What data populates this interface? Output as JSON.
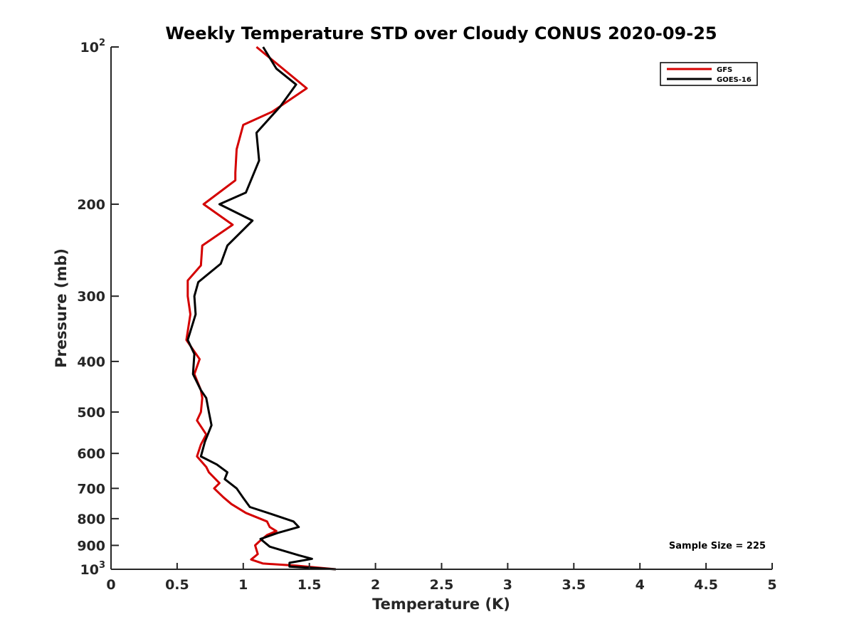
{
  "chart_data": {
    "type": "line",
    "title": "Weekly Temperature STD over Cloudy CONUS 2020-09-25",
    "xlabel": "Temperature (K)",
    "ylabel": "Pressure (mb)",
    "xlim": [
      0,
      5
    ],
    "ylim": [
      100,
      1000
    ],
    "y_scale": "log",
    "y_reversed": true,
    "grid": false,
    "legend_position": "top-right",
    "xticks": [
      0,
      0.5,
      1,
      1.5,
      2,
      2.5,
      3,
      3.5,
      4,
      4.5,
      5
    ],
    "xtick_labels": [
      "0",
      "0.5",
      "1",
      "1.5",
      "2",
      "2.5",
      "3",
      "3.5",
      "4",
      "4.5",
      "5"
    ],
    "yticks": [
      {
        "value": 100,
        "base": "10",
        "exp": "2",
        "label": ""
      },
      {
        "value": 200,
        "label": "200"
      },
      {
        "value": 300,
        "label": "300"
      },
      {
        "value": 400,
        "label": "400"
      },
      {
        "value": 500,
        "label": "500"
      },
      {
        "value": 600,
        "label": "600"
      },
      {
        "value": 700,
        "label": "700"
      },
      {
        "value": 800,
        "label": "800"
      },
      {
        "value": 900,
        "label": "900"
      },
      {
        "value": 1000,
        "base": "10",
        "exp": "3",
        "label": ""
      }
    ],
    "annotation": "Sample Size = 225",
    "series": [
      {
        "name": "GFS",
        "color": "#d40000",
        "points": [
          [
            1.1,
            100
          ],
          [
            1.48,
            120
          ],
          [
            1.22,
            133
          ],
          [
            1.0,
            141
          ],
          [
            0.95,
            157
          ],
          [
            0.94,
            174
          ],
          [
            0.94,
            180
          ],
          [
            0.7,
            200
          ],
          [
            0.92,
            219
          ],
          [
            0.69,
            240
          ],
          [
            0.68,
            262
          ],
          [
            0.58,
            280
          ],
          [
            0.58,
            300
          ],
          [
            0.6,
            325
          ],
          [
            0.57,
            364
          ],
          [
            0.67,
            396
          ],
          [
            0.63,
            423
          ],
          [
            0.68,
            454
          ],
          [
            0.69,
            470
          ],
          [
            0.68,
            500
          ],
          [
            0.65,
            519
          ],
          [
            0.72,
            552
          ],
          [
            0.68,
            577
          ],
          [
            0.65,
            608
          ],
          [
            0.72,
            637
          ],
          [
            0.74,
            652
          ],
          [
            0.82,
            684
          ],
          [
            0.78,
            700
          ],
          [
            0.85,
            728
          ],
          [
            0.91,
            750
          ],
          [
            1.02,
            780
          ],
          [
            1.18,
            810
          ],
          [
            1.2,
            830
          ],
          [
            1.25,
            845
          ],
          [
            1.18,
            860
          ],
          [
            1.12,
            885
          ],
          [
            1.09,
            900
          ],
          [
            1.11,
            935
          ],
          [
            1.06,
            958
          ],
          [
            1.15,
            975
          ],
          [
            1.4,
            984
          ],
          [
            1.7,
            1000
          ]
        ]
      },
      {
        "name": "GOES-16",
        "color": "#000000",
        "points": [
          [
            1.15,
            100
          ],
          [
            1.25,
            110
          ],
          [
            1.4,
            118
          ],
          [
            1.28,
            130
          ],
          [
            1.1,
            146
          ],
          [
            1.12,
            165
          ],
          [
            1.02,
            190
          ],
          [
            0.82,
            200
          ],
          [
            1.07,
            215
          ],
          [
            0.88,
            240
          ],
          [
            0.83,
            260
          ],
          [
            0.66,
            282
          ],
          [
            0.63,
            300
          ],
          [
            0.64,
            325
          ],
          [
            0.58,
            364
          ],
          [
            0.63,
            387
          ],
          [
            0.62,
            423
          ],
          [
            0.68,
            454
          ],
          [
            0.72,
            470
          ],
          [
            0.74,
            500
          ],
          [
            0.76,
            530
          ],
          [
            0.71,
            570
          ],
          [
            0.68,
            608
          ],
          [
            0.8,
            630
          ],
          [
            0.88,
            652
          ],
          [
            0.86,
            672
          ],
          [
            0.95,
            700
          ],
          [
            1.0,
            730
          ],
          [
            1.05,
            760
          ],
          [
            1.22,
            785
          ],
          [
            1.38,
            810
          ],
          [
            1.42,
            830
          ],
          [
            1.26,
            852
          ],
          [
            1.13,
            875
          ],
          [
            1.2,
            905
          ],
          [
            1.42,
            940
          ],
          [
            1.52,
            955
          ],
          [
            1.35,
            972
          ],
          [
            1.35,
            988
          ],
          [
            1.7,
            1000
          ]
        ]
      }
    ]
  }
}
